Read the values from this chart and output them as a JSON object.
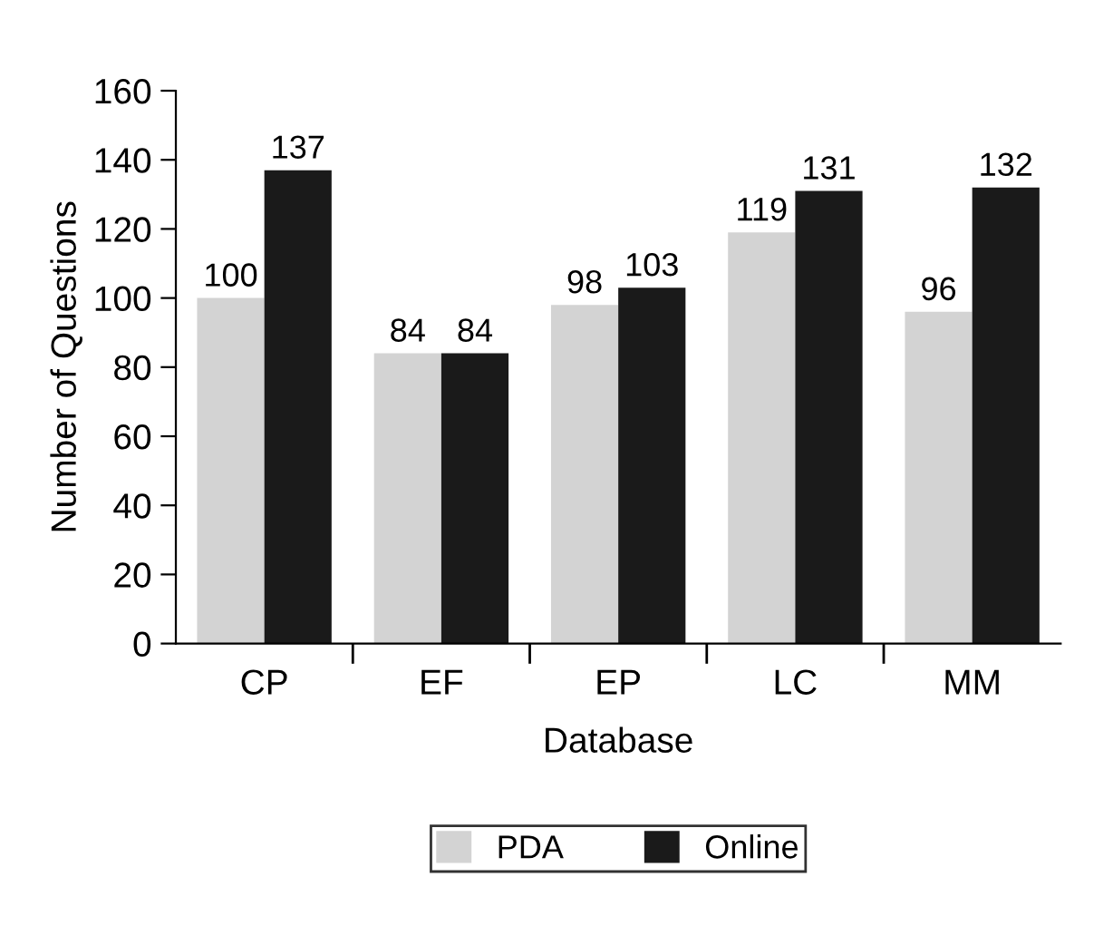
{
  "chart_data": {
    "type": "bar",
    "xlabel": "Database",
    "ylabel": "Number of Questions",
    "categories": [
      "CP",
      "EF",
      "EP",
      "LC",
      "MM"
    ],
    "series": [
      {
        "name": "PDA",
        "color": "#d3d3d3",
        "values": [
          100,
          84,
          98,
          119,
          96
        ]
      },
      {
        "name": "Online",
        "color": "#1a1a1a",
        "values": [
          137,
          84,
          103,
          131,
          132
        ]
      }
    ],
    "ylim": [
      0,
      160
    ],
    "yticks": [
      0,
      20,
      40,
      60,
      80,
      100,
      120,
      140,
      160
    ],
    "data_labels": true,
    "legend": "bottom",
    "grid": false
  }
}
